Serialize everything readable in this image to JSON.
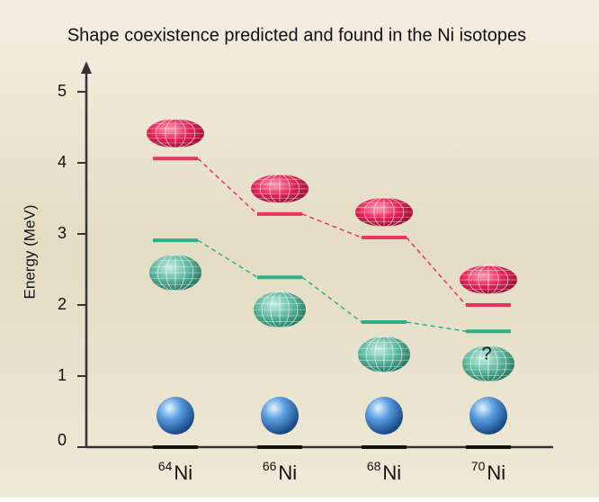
{
  "chart_data": {
    "type": "levels",
    "title": "Shape coexistence predicted and found in the Ni isotopes",
    "y_label": "Energy (MeV)",
    "categories": [
      "64",
      "66",
      "68",
      "70"
    ],
    "element": "Ni",
    "ylim": [
      0,
      5.38
    ],
    "yticks": [
      0,
      1,
      2,
      3,
      4,
      5
    ],
    "series": [
      {
        "color": "#111111",
        "dashed": false,
        "values": [
          0,
          0,
          0,
          0
        ]
      },
      {
        "color": "#2bb08a",
        "dashed": true,
        "values": [
          2.91,
          2.39,
          1.76,
          1.63
        ]
      },
      {
        "color": "#e8355f",
        "dashed": true,
        "values": [
          4.06,
          3.28,
          2.95,
          2.0
        ]
      }
    ],
    "annotation": "?"
  }
}
